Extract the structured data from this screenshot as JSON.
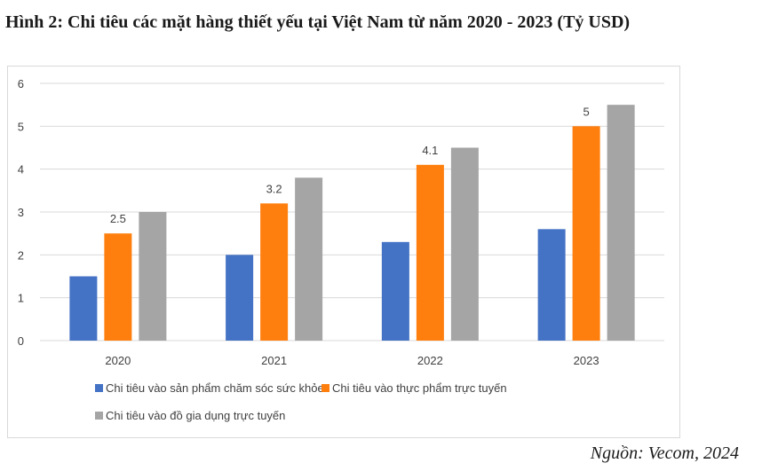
{
  "title": "Hình 2: Chi tiêu các mặt hàng thiết yếu tại Việt Nam từ năm 2020 - 2023 (Tỷ USD)",
  "source": "Nguồn: Vecom, 2024",
  "colors": {
    "series1": "#4472c4",
    "series2": "#ff7f0e",
    "series3": "#a5a5a5",
    "grid": "#d9d9d9",
    "text": "#404040"
  },
  "chart_data": {
    "type": "bar",
    "categories": [
      "2020",
      "2021",
      "2022",
      "2023"
    ],
    "series": [
      {
        "name": "Chi tiêu vào sản phẩm chăm sóc sức khỏe",
        "values": [
          1.5,
          2.0,
          2.3,
          2.6
        ]
      },
      {
        "name": "Chi tiêu vào thực phẩm trực tuyến",
        "values": [
          2.5,
          3.2,
          4.1,
          5.0
        ],
        "data_labels": [
          "2.5",
          "3.2",
          "4.1",
          "5"
        ]
      },
      {
        "name": "Chi tiêu vào đồ gia dụng trực tuyến",
        "values": [
          3.0,
          3.8,
          4.5,
          5.5
        ]
      }
    ],
    "yticks": [
      "0",
      "1",
      "2",
      "3",
      "4",
      "5",
      "6"
    ],
    "ylim": [
      0,
      6
    ],
    "grid": true,
    "legend": "bottom"
  }
}
